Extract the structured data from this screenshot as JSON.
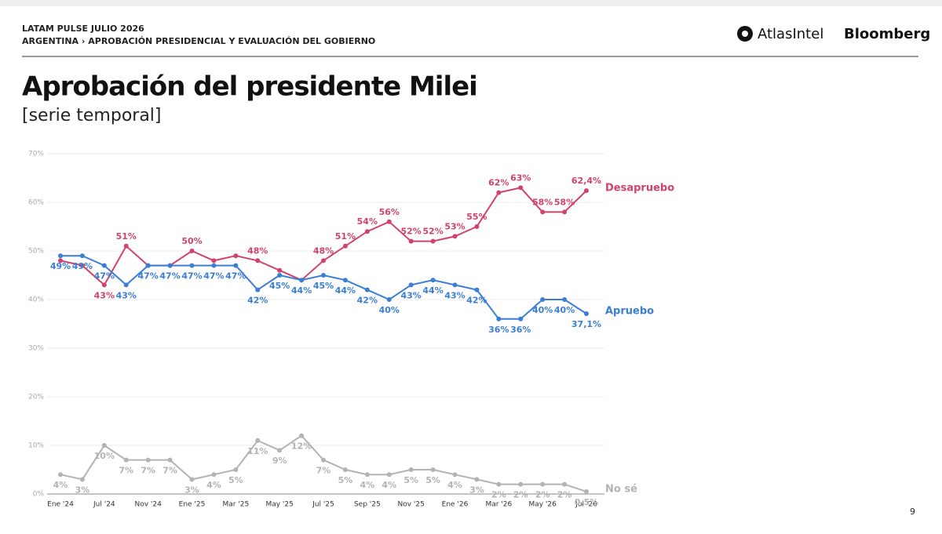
{
  "header": {
    "kicker": "LATAM PULSE JULIO 2026",
    "breadcrumb": "ARGENTINA › APROBACIÓN PRESIDENCIAL Y EVALUACIÓN DEL GOBIERNO",
    "logos": [
      "AtlasIntel",
      "Bloomberg"
    ]
  },
  "page_number": "9",
  "chart_data": {
    "type": "line",
    "title": "Aprobación del presidente Milei",
    "subtitle": "[serie temporal]",
    "categories": [
      "Ene '24",
      null,
      "Jul '24",
      null,
      "Nov '24",
      null,
      "Ene '25",
      null,
      "Mar '25",
      null,
      "May '25",
      null,
      "Jul '25",
      null,
      "Sep '25",
      null,
      "Nov '25",
      null,
      "Ene '26",
      null,
      "Mar '26",
      null,
      "May '26",
      null,
      "Jul '26"
    ],
    "ylim": [
      0,
      70
    ],
    "yticks": [
      {
        "value": 0,
        "label": "0%"
      },
      {
        "value": 10,
        "label": "10%"
      },
      {
        "value": 20,
        "label": "20%"
      },
      {
        "value": 30,
        "label": "30%"
      },
      {
        "value": 40,
        "label": "40%"
      },
      {
        "value": 50,
        "label": "50%"
      },
      {
        "value": 60,
        "label": "60%"
      },
      {
        "value": 70,
        "label": "70%"
      }
    ],
    "grid": true,
    "series": [
      {
        "name": "Desapruebo",
        "color": "#d2436b",
        "values": [
          48,
          47,
          43,
          51,
          47,
          47,
          50,
          48,
          49,
          48,
          46,
          44,
          48,
          51,
          54,
          56,
          52,
          52,
          53,
          55,
          62,
          63,
          58,
          58,
          62.4
        ],
        "value_labels": [
          null,
          null,
          "43%",
          "51%",
          null,
          null,
          "50%",
          null,
          null,
          "48%",
          null,
          null,
          "48%",
          "51%",
          "54%",
          "56%",
          "52%",
          "52%",
          "53%",
          "55%",
          "62%",
          "63%",
          "58%",
          "58%",
          "62,4%"
        ]
      },
      {
        "name": "Apruebo",
        "color": "#3a7fd5",
        "values": [
          49,
          49,
          47,
          43,
          47,
          47,
          47,
          47,
          47,
          42,
          45,
          44,
          45,
          44,
          42,
          40,
          43,
          44,
          43,
          42,
          36,
          36,
          40,
          40,
          37.1
        ],
        "value_labels": [
          "49%",
          "49%",
          "47%",
          "43%",
          "47%",
          "47%",
          "47%",
          "47%",
          "47%",
          "42%",
          "45%",
          "44%",
          "45%",
          "44%",
          "42%",
          "40%",
          "43%",
          "44%",
          "43%",
          "42%",
          "36%",
          "36%",
          "40%",
          "40%",
          "37,1%"
        ]
      },
      {
        "name": "No sé",
        "color": "#b3b3b3",
        "values": [
          4,
          3,
          10,
          7,
          7,
          7,
          3,
          4,
          5,
          11,
          9,
          12,
          7,
          5,
          4,
          4,
          5,
          5,
          4,
          3,
          2,
          2,
          2,
          2,
          0.5
        ],
        "value_labels": [
          "4%",
          "3%",
          "10%",
          "7%",
          "7%",
          "7%",
          "3%",
          "4%",
          "5%",
          "11%",
          "9%",
          "12%",
          "7%",
          "5%",
          "4%",
          "4%",
          "5%",
          "5%",
          "4%",
          "3%",
          "2%",
          "2%",
          "2%",
          "2%",
          "0,5%"
        ]
      }
    ]
  }
}
